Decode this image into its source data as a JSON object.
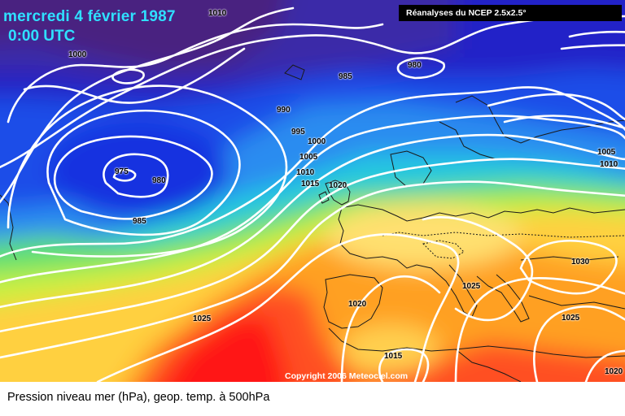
{
  "map": {
    "title_date": "mercredi 4 février 1987",
    "title_time": "0:00 UTC",
    "source_label": "Réanalyses du NCEP 2.5x2.5°",
    "copyright": "Copyright 2006 Meteociel.com",
    "caption": "Pression niveau mer (hPa), geop. temp. à 500hPa",
    "isobar_labels": [
      "1010",
      "1000",
      "980",
      "985",
      "990",
      "995",
      "1000",
      "1005",
      "1010",
      "1015",
      "1020",
      "975",
      "980",
      "985",
      "1005",
      "1010",
      "1025",
      "1020",
      "1025",
      "1015",
      "1030",
      "1025",
      "1020"
    ],
    "colors": {
      "title": "#2fe0ff",
      "isobar": "#ffffff",
      "coast": "#1a1a1a",
      "low_core": "#1010c8",
      "high_core": "#ff1010"
    }
  }
}
